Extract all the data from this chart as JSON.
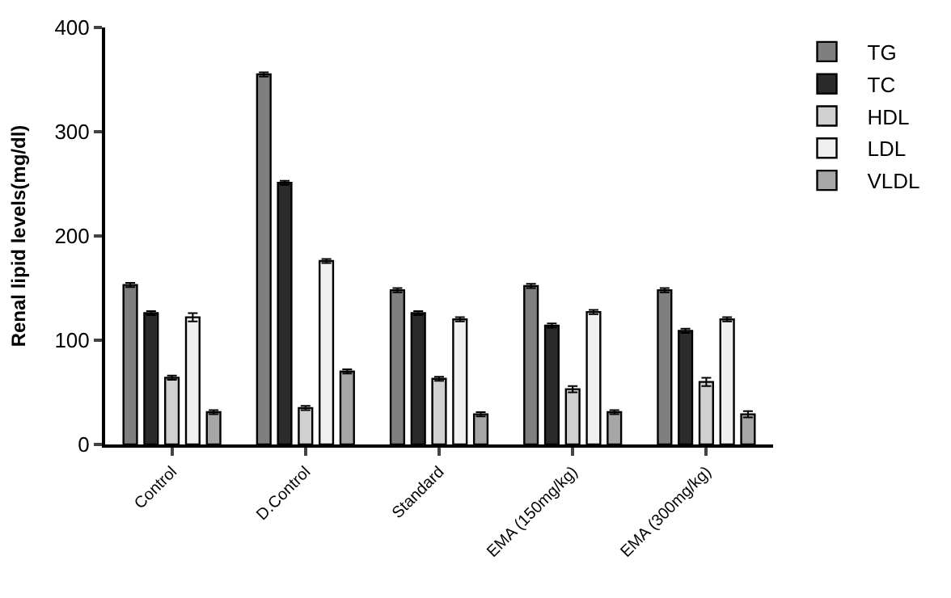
{
  "chart_data": {
    "type": "bar",
    "ylabel": "Renal lipid levels(mg/dl)",
    "categories": [
      "Control",
      "D.Control",
      "Standard",
      "EMA (150mg/kg)",
      "EMA (300mg/kg)"
    ],
    "series": [
      {
        "name": "TG",
        "color": "#7f7f7f",
        "values": [
          153,
          355,
          148,
          152,
          148
        ],
        "errors": [
          2,
          2,
          2,
          2,
          2
        ]
      },
      {
        "name": "TC",
        "color": "#2b2b2b",
        "values": [
          126,
          251,
          126,
          114,
          109
        ],
        "errors": [
          2,
          2,
          2,
          2,
          2
        ]
      },
      {
        "name": "HDL",
        "color": "#d0d0d0",
        "values": [
          64,
          35,
          63,
          53,
          60
        ],
        "errors": [
          2,
          2,
          2,
          3,
          4
        ]
      },
      {
        "name": "LDL",
        "color": "#f0f0f0",
        "values": [
          122,
          176,
          120,
          127,
          120
        ],
        "errors": [
          4,
          2,
          2,
          2,
          2
        ]
      },
      {
        "name": "VLDL",
        "color": "#a6a6a6",
        "values": [
          31,
          70,
          29,
          31,
          29
        ],
        "errors": [
          2,
          2,
          2,
          2,
          3
        ]
      }
    ],
    "ylim": [
      0,
      400
    ],
    "yticks": [
      0,
      100,
      200,
      300,
      400
    ],
    "grid": false,
    "legend": "top right"
  }
}
